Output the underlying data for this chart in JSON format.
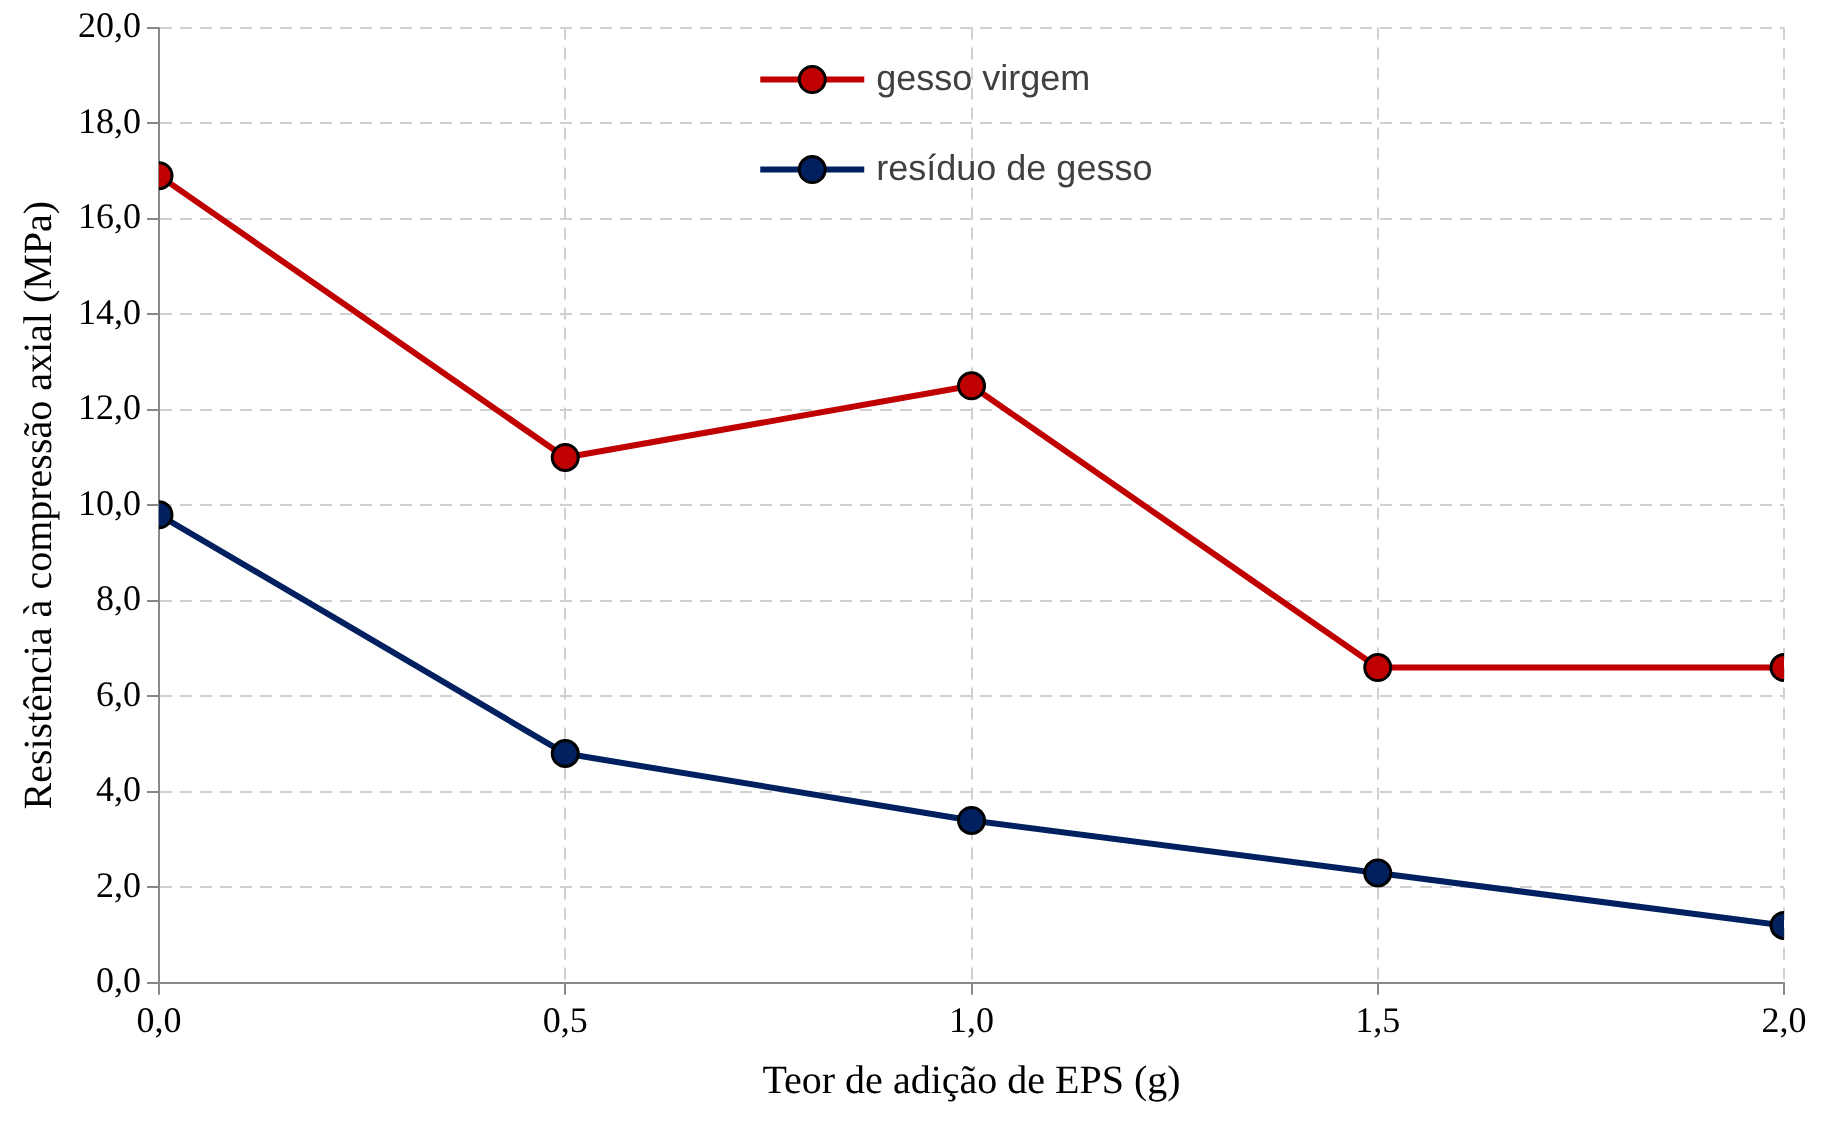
{
  "chart_data": {
    "type": "line",
    "xlabel": "Teor de adição de EPS (g)",
    "ylabel": "Resistência à compressão axial (MPa)",
    "x": [
      0,
      0.5,
      1,
      1.5,
      2
    ],
    "series": [
      {
        "name": "gesso virgem",
        "color": "#c00000",
        "values": [
          16.9,
          11.0,
          12.5,
          6.6,
          6.6
        ]
      },
      {
        "name": "resíduo de gesso",
        "color": "#002060",
        "values": [
          9.8,
          4.8,
          3.4,
          2.3,
          1.2
        ]
      }
    ],
    "xlim": [
      0,
      2
    ],
    "xticks": [
      {
        "value": 0,
        "label": "0,0"
      },
      {
        "value": 0.5,
        "label": "0,5"
      },
      {
        "value": 1,
        "label": "1,0"
      },
      {
        "value": 1.5,
        "label": "1,5"
      },
      {
        "value": 2,
        "label": "2,0"
      }
    ],
    "ylim": [
      0,
      20
    ],
    "yticks": [
      {
        "value": 0,
        "label": "0,0"
      },
      {
        "value": 2,
        "label": "2,0"
      },
      {
        "value": 4,
        "label": "4,0"
      },
      {
        "value": 6,
        "label": "6,0"
      },
      {
        "value": 8,
        "label": "8,0"
      },
      {
        "value": 10,
        "label": "10,0"
      },
      {
        "value": 12,
        "label": "12,0"
      },
      {
        "value": 14,
        "label": "14,0"
      },
      {
        "value": 16,
        "label": "16,0"
      },
      {
        "value": 18,
        "label": "18,0"
      },
      {
        "value": 20,
        "label": "20,0"
      }
    ],
    "grid": true,
    "legend": "top",
    "marker": "circle",
    "line_style": "solid"
  }
}
